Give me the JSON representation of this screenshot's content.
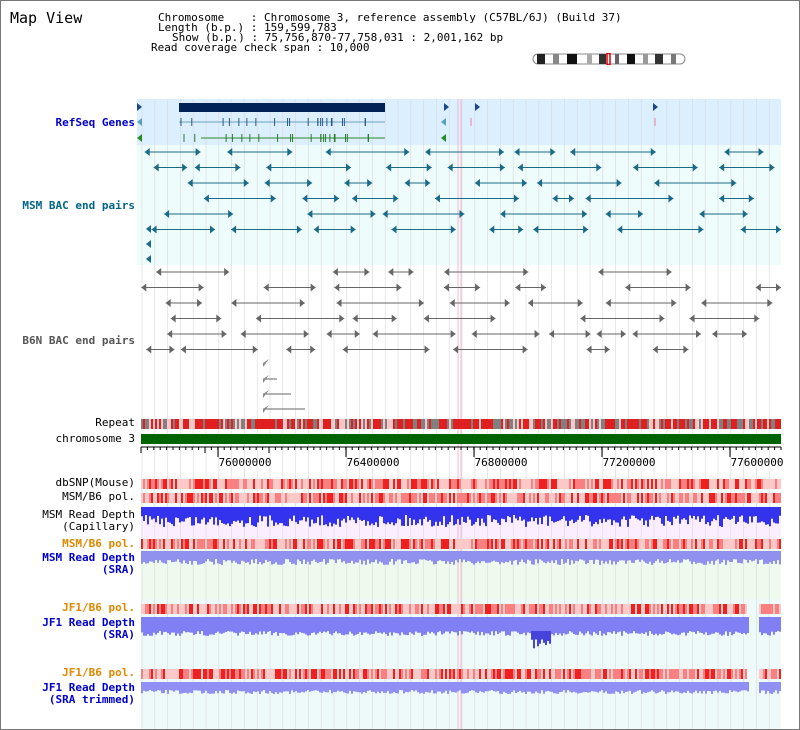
{
  "title": "Map View",
  "header": {
    "chromosome_line": "Chromosome    : Chromosome 3, reference assembly (C57BL/6J) (Build 37)",
    "length_line": "Length (b.p.) : 159,599,783",
    "show_line": "Show (b.p.) : 75,756,870-77,758,031 : 2,001,162 bp",
    "coverage_line": "Read coverage check span : 10,000"
  },
  "track_labels": {
    "refseq": "RefSeq Genes",
    "msm_bac": "MSM BAC end pairs",
    "b6n_bac": "B6N BAC end pairs",
    "repeat": "Repeat",
    "chromosome": "chromosome 3",
    "dbsnp": "dbSNP(Mouse)",
    "msm_b6_pol": "MSM/B6 pol.",
    "msm_depth_cap_1": "MSM Read Depth",
    "msm_depth_cap_2": "(Capillary)",
    "msm_b6_pol_2": "MSM/B6 pol.",
    "msm_depth_sra_1": "MSM Read Depth",
    "msm_depth_sra_2": "(SRA)",
    "jf1_b6_pol": "JF1/B6 pol.",
    "jf1_depth_sra_1": "JF1 Read Depth",
    "jf1_depth_sra_2": "(SRA)",
    "jf1_b6_pol_2": "JF1/B6 pol.",
    "jf1_depth_trim_1": "JF1 Read Depth",
    "jf1_depth_trim_2": "(SRA trimmed)"
  },
  "axis_ticks": [
    "76000000",
    "76400000",
    "76800000",
    "77200000",
    "77600000"
  ],
  "colors": {
    "refseq_label": "#0000cc",
    "msm_bac_label": "#006688",
    "b6n_bac_label": "#555555",
    "pol_label_orange": "#e08800",
    "depth_label_blue": "#0000cc",
    "chromosome_bar": "#006400",
    "depth_blue": "#3333ee",
    "depth_lightblue": "#8888ff"
  }
}
